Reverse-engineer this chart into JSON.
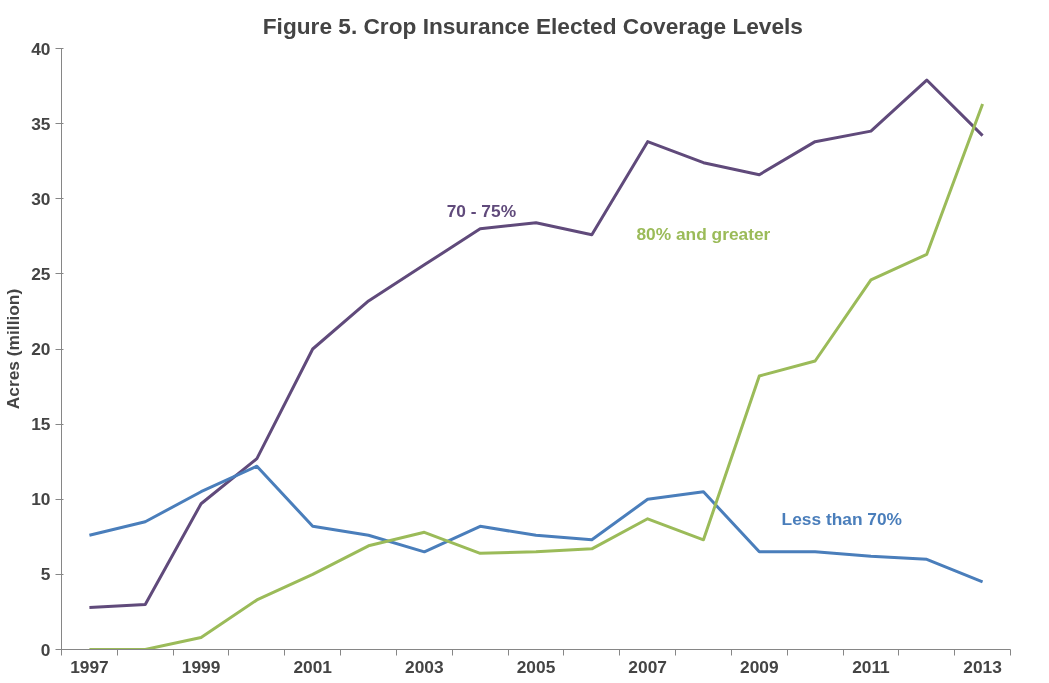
{
  "chart_data": {
    "type": "line",
    "title": "Figure 5.  Crop Insurance Elected Coverage Levels",
    "ylabel": "Acres (million)",
    "categories": [
      "1997",
      null,
      "1999",
      null,
      "2001",
      null,
      "2003",
      null,
      "2005",
      null,
      "2007",
      null,
      "2009",
      null,
      "2011",
      null,
      "2013"
    ],
    "series": [
      {
        "name": "70 - 75%",
        "color": "#604a7b",
        "values": [
          2.8,
          3.0,
          9.7,
          12.7,
          20.0,
          23.2,
          25.6,
          28.0,
          28.4,
          27.6,
          33.8,
          32.4,
          31.6,
          33.8,
          34.5,
          37.9,
          34.2
        ]
      },
      {
        "name": "Less than 70%",
        "color": "#4a7ebb",
        "values": [
          7.6,
          8.5,
          10.5,
          12.2,
          8.2,
          7.6,
          6.5,
          8.2,
          7.6,
          7.3,
          10.0,
          10.5,
          6.5,
          6.5,
          6.2,
          6.0,
          4.5
        ]
      },
      {
        "name": "80% and greater",
        "color": "#9bbb59",
        "values": [
          0,
          0,
          0.8,
          3.3,
          5.0,
          6.9,
          7.8,
          6.4,
          6.5,
          6.7,
          8.7,
          7.3,
          18.2,
          19.2,
          24.6,
          26.3,
          36.3
        ]
      }
    ],
    "ylim": [
      0,
      40
    ],
    "yticks": [
      0,
      5,
      10,
      15,
      20,
      25,
      30,
      35,
      40
    ],
    "grid": false,
    "marker": "none",
    "line_style": "solid"
  }
}
